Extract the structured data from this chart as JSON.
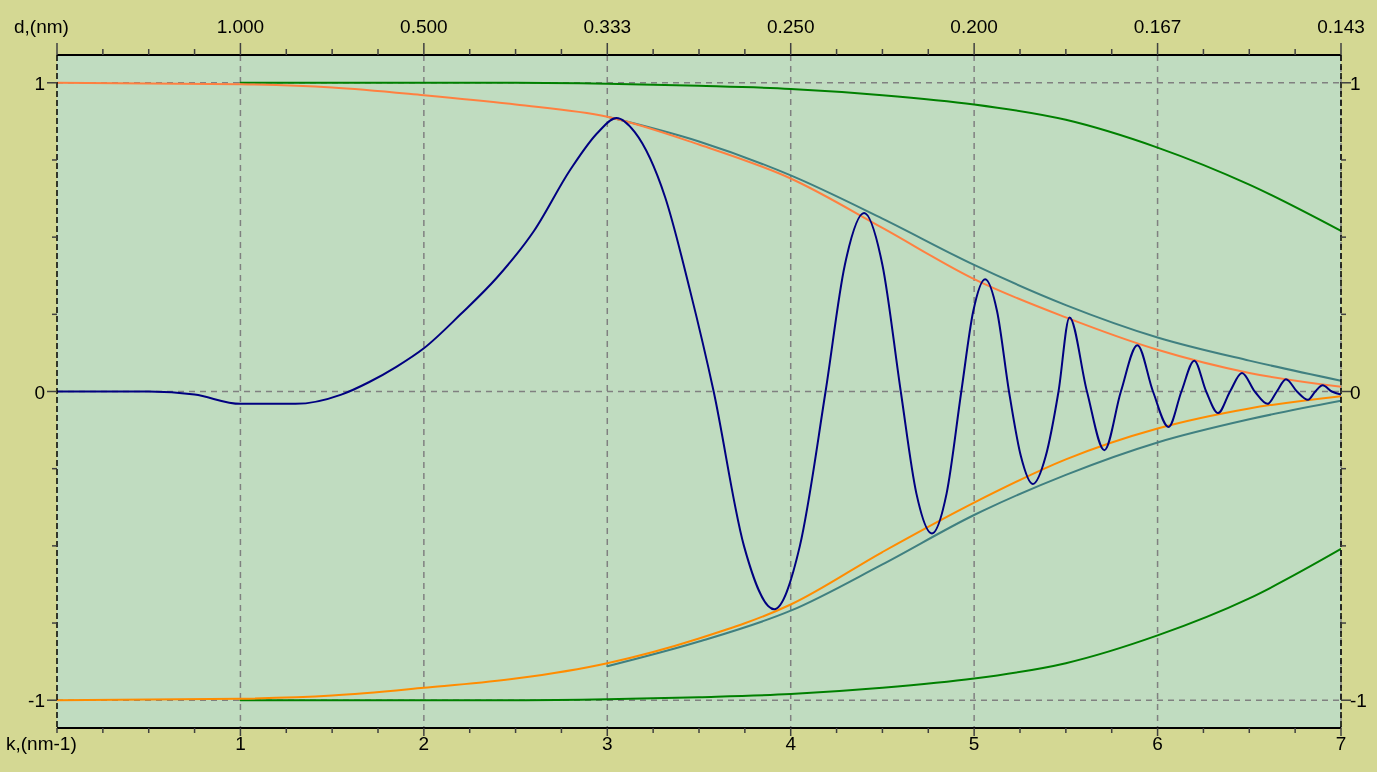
{
  "chart_data": {
    "type": "line",
    "xlabel": "k,(nm-1)",
    "x2label": "d,(nm)",
    "xlim": [
      0,
      7
    ],
    "xticks": [
      {
        "value": 0,
        "label": null
      },
      {
        "value": 0.25,
        "label": null
      },
      {
        "value": 0.5,
        "label": null
      },
      {
        "value": 0.75,
        "label": null
      },
      1,
      {
        "value": 1.25,
        "label": null
      },
      {
        "value": 1.5,
        "label": null
      },
      {
        "value": 1.75,
        "label": null
      },
      2,
      {
        "value": 2.25,
        "label": null
      },
      {
        "value": 2.5,
        "label": null
      },
      {
        "value": 2.75,
        "label": null
      },
      3,
      {
        "value": 3.25,
        "label": null
      },
      {
        "value": 3.5,
        "label": null
      },
      {
        "value": 3.75,
        "label": null
      },
      4,
      {
        "value": 4.25,
        "label": null
      },
      {
        "value": 4.5,
        "label": null
      },
      {
        "value": 4.75,
        "label": null
      },
      5,
      {
        "value": 5.25,
        "label": null
      },
      {
        "value": 5.5,
        "label": null
      },
      {
        "value": 5.75,
        "label": null
      },
      6,
      {
        "value": 6.25,
        "label": null
      },
      {
        "value": 6.5,
        "label": null
      },
      {
        "value": 6.75,
        "label": null
      },
      7
    ],
    "annotations": [
      "1.000",
      "0.500",
      "0.333",
      "0.250",
      "0.200",
      "0.167",
      "0.143"
    ],
    "ylim": [
      -1.09,
      1.09
    ],
    "yticks": [
      -1,
      {
        "value": -0.75,
        "label": null
      },
      {
        "value": -0.5,
        "label": null
      },
      {
        "value": -0.25,
        "label": null
      },
      0,
      {
        "value": 0.25,
        "label": null
      },
      {
        "value": 0.5,
        "label": null
      },
      {
        "value": 0.75,
        "label": null
      },
      1
    ],
    "y2lim": [
      -1.09,
      1.09
    ],
    "y2ticks": [
      -1,
      {
        "value": -0.75,
        "label": null
      },
      {
        "value": -0.5,
        "label": null
      },
      {
        "value": -0.25,
        "label": null
      },
      0,
      {
        "value": 0.25,
        "label": null
      },
      {
        "value": 0.5,
        "label": null
      },
      {
        "value": 0.75,
        "label": null
      },
      1
    ],
    "grid": true,
    "line_style": "solid",
    "series": [
      {
        "color": "#008000",
        "x": [
          1,
          2.5,
          3,
          3.5,
          4,
          4.5,
          5,
          5.5,
          6,
          6.5,
          7
        ],
        "values": [
          1,
          1,
          0.997,
          0.99,
          0.98,
          0.96,
          0.93,
          0.88,
          0.79,
          0.67,
          0.52
        ]
      },
      {
        "color": "#008000",
        "x": [
          1,
          2.5,
          3,
          3.5,
          4,
          4.5,
          5,
          5.5,
          6,
          6.5,
          7
        ],
        "values": [
          -1,
          -1,
          -0.997,
          -0.99,
          -0.98,
          -0.96,
          -0.93,
          -0.88,
          -0.79,
          -0.67,
          -0.51
        ]
      },
      {
        "color": "#408080",
        "x": [
          3,
          3.5,
          4,
          4.5,
          5,
          5.5,
          6,
          6.5,
          7
        ],
        "values": [
          0.89,
          0.81,
          0.7,
          0.56,
          0.41,
          0.28,
          0.175,
          0.1,
          0.035
        ]
      },
      {
        "color": "#408080",
        "x": [
          3,
          3.5,
          4,
          4.5,
          5,
          5.5,
          6,
          6.5,
          7
        ],
        "values": [
          -0.89,
          -0.81,
          -0.71,
          -0.56,
          -0.4,
          -0.27,
          -0.165,
          -0.09,
          -0.03
        ]
      },
      {
        "color": "#ff8040",
        "x": [
          0,
          1,
          1.5,
          2,
          2.5,
          3,
          3.5,
          4,
          4.5,
          5,
          5.5,
          6,
          6.5,
          7
        ],
        "values": [
          1,
          0.995,
          0.985,
          0.96,
          0.93,
          0.89,
          0.8,
          0.69,
          0.53,
          0.364,
          0.24,
          0.135,
          0.06,
          0.015
        ]
      },
      {
        "color": "#ff8c00",
        "x": [
          0,
          1,
          1.5,
          2,
          2.5,
          3,
          3.5,
          4,
          4.5,
          5,
          5.5,
          6,
          6.5,
          7
        ],
        "values": [
          -1,
          -0.995,
          -0.985,
          -0.96,
          -0.93,
          -0.88,
          -0.8,
          -0.69,
          -0.52,
          -0.36,
          -0.22,
          -0.12,
          -0.055,
          -0.015
        ]
      },
      {
        "color": "#000080",
        "x": [
          0,
          0.5,
          0.75,
          1,
          1.3,
          1.55,
          1.7,
          1.85,
          2,
          2.2,
          2.4,
          2.6,
          2.8,
          2.95,
          3.05,
          3.15,
          3.315,
          3.45,
          3.58,
          3.745,
          3.91,
          4.05,
          4.19,
          4.295,
          4.4,
          4.5,
          4.6,
          4.685,
          4.77,
          4.85,
          4.93,
          4.995,
          5.06,
          5.125,
          5.19,
          5.255,
          5.32,
          5.39,
          5.46,
          5.52,
          5.615,
          5.71,
          5.8,
          5.89,
          5.975,
          6.06,
          6.13,
          6.2,
          6.265,
          6.33,
          6.395,
          6.46,
          6.53,
          6.6,
          6.65,
          6.7,
          6.76,
          6.82,
          6.86,
          6.9,
          6.95,
          7
        ],
        "values": [
          0,
          0,
          -0.01,
          -0.04,
          -0.04,
          -0.01,
          0.03,
          0.08,
          0.14,
          0.25,
          0.37,
          0.52,
          0.72,
          0.84,
          0.886,
          0.84,
          0.63,
          0.33,
          0,
          -0.5,
          -0.705,
          -0.5,
          0,
          0.41,
          0.578,
          0.41,
          0,
          -0.33,
          -0.46,
          -0.33,
          0,
          0.26,
          0.364,
          0.26,
          0,
          -0.21,
          -0.3,
          -0.21,
          0,
          0.24,
          0,
          -0.19,
          0,
          0.15,
          0,
          -0.115,
          0,
          0.1,
          0,
          -0.07,
          0,
          0.06,
          0,
          -0.04,
          0,
          0.04,
          0,
          -0.027,
          0,
          0.02,
          0,
          -0.01
        ]
      }
    ]
  }
}
